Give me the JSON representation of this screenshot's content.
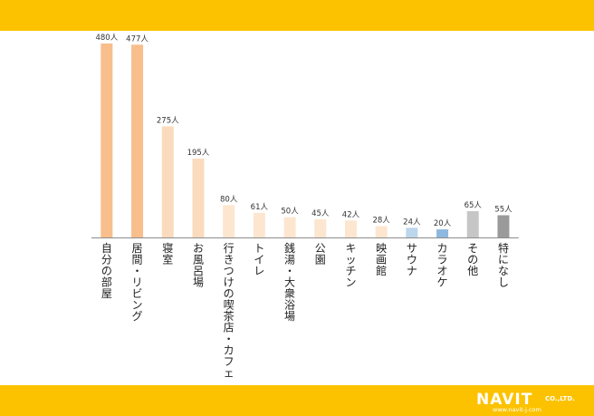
{
  "chart_data": {
    "type": "bar",
    "categories": [
      "自分の部屋",
      "居間・リビング",
      "寝室",
      "お風呂場",
      "行きつけの喫茶店・カフェ",
      "トイレ",
      "銭湯・大衆浴場",
      "公園",
      "キッチン",
      "映画館",
      "サウナ",
      "カラオケ",
      "その他",
      "特になし"
    ],
    "values": [
      480,
      477,
      275,
      195,
      80,
      61,
      50,
      45,
      42,
      28,
      24,
      20,
      65,
      55
    ],
    "value_labels": [
      "480人",
      "477人",
      "275人",
      "195人",
      "80人",
      "61人",
      "50人",
      "45人",
      "42人",
      "28人",
      "24人",
      "20人",
      "65人",
      "55人"
    ],
    "ylim": [
      0,
      480
    ],
    "grid": false,
    "bar_colors": [
      "#f8be8c",
      "#f8be8c",
      "#fbdbbd",
      "#fbdbbd",
      "#fde6d0",
      "#fde6d0",
      "#fde6d0",
      "#fde6d0",
      "#fde6d0",
      "#fde6d0",
      "#bcd6ec",
      "#8fb8de",
      "#c6c6c6",
      "#9a9a9a"
    ]
  },
  "header": {
    "band_color": "#fcc200"
  },
  "footer": {
    "brand": "NAVIT",
    "brand_suffix": "CO.,LTD.",
    "url": "www.navit-j.com"
  }
}
